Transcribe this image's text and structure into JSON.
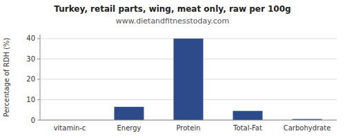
{
  "chart_data": {
    "type": "bar",
    "title": "Turkey, retail parts, wing, meat only, raw per 100g",
    "subtitle": "www.dietandfitnesstoday.com",
    "categories": [
      "vitamin-c",
      "Energy",
      "Protein",
      "Total-Fat",
      "Carbohydrate"
    ],
    "values": [
      0,
      6.5,
      40,
      4.5,
      0.5
    ],
    "color": "#2d4a8a",
    "ylabel": "Percentage of RDH (%)",
    "ylim": [
      0,
      42
    ],
    "yticks": [
      0,
      10,
      20,
      30,
      40
    ],
    "grid": true
  }
}
